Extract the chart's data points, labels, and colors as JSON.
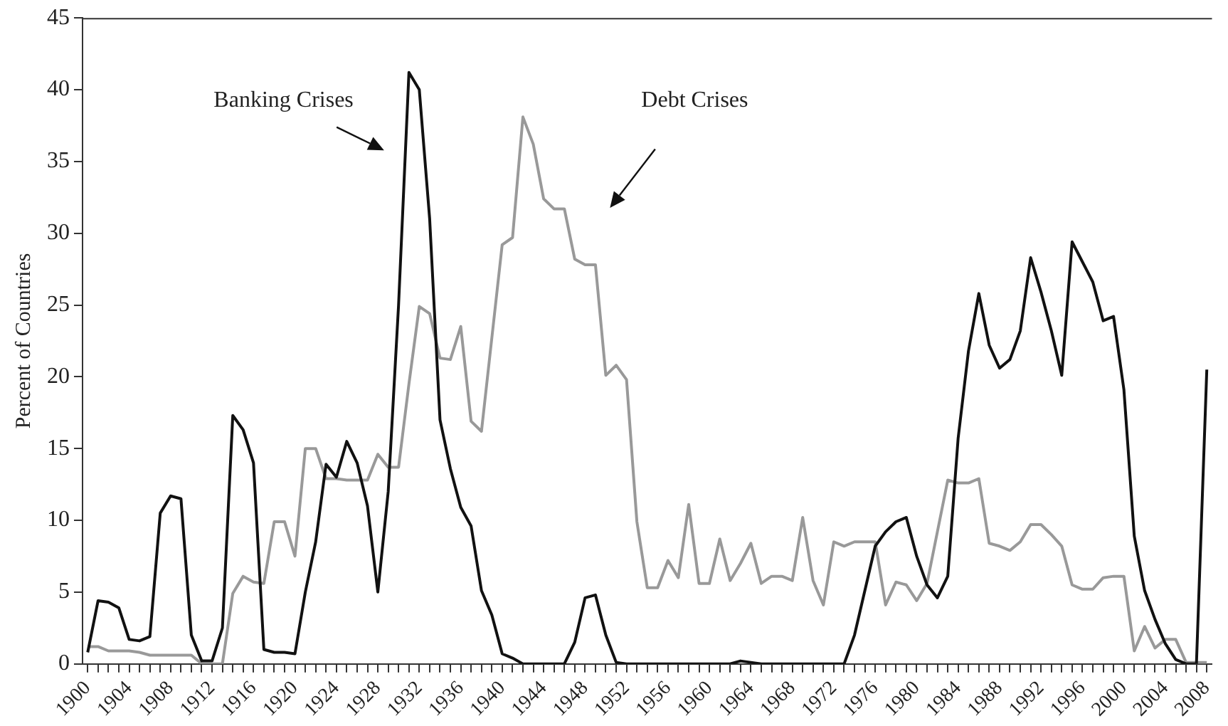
{
  "chart_data": {
    "type": "line",
    "ylabel": "Percent of Countries",
    "x": [
      1900,
      1901,
      1902,
      1903,
      1904,
      1905,
      1906,
      1907,
      1908,
      1909,
      1910,
      1911,
      1912,
      1913,
      1914,
      1915,
      1916,
      1917,
      1918,
      1919,
      1920,
      1921,
      1922,
      1923,
      1924,
      1925,
      1926,
      1927,
      1928,
      1929,
      1930,
      1931,
      1932,
      1933,
      1934,
      1935,
      1936,
      1937,
      1938,
      1939,
      1940,
      1941,
      1942,
      1943,
      1944,
      1945,
      1946,
      1947,
      1948,
      1949,
      1950,
      1951,
      1952,
      1953,
      1954,
      1955,
      1956,
      1957,
      1958,
      1959,
      1960,
      1961,
      1962,
      1963,
      1964,
      1965,
      1966,
      1967,
      1968,
      1969,
      1970,
      1971,
      1972,
      1973,
      1974,
      1975,
      1976,
      1977,
      1978,
      1979,
      1980,
      1981,
      1982,
      1983,
      1984,
      1985,
      1986,
      1987,
      1988,
      1989,
      1990,
      1991,
      1992,
      1993,
      1994,
      1995,
      1996,
      1997,
      1998,
      1999,
      2000,
      2001,
      2002,
      2003,
      2004,
      2005,
      2006,
      2007,
      2008
    ],
    "series": [
      {
        "color": "#111111",
        "values": [
          0.8,
          4.4,
          4.3,
          3.9,
          1.7,
          1.6,
          1.9,
          10.5,
          11.7,
          11.5,
          2.0,
          0.2,
          0.2,
          2.5,
          17.3,
          16.3,
          14.0,
          1.0,
          0.8,
          0.8,
          0.7,
          5.0,
          8.5,
          13.9,
          13.0,
          15.5,
          14.0,
          11.0,
          5.0,
          12.0,
          25.0,
          41.2,
          40.0,
          31.0,
          17.0,
          13.6,
          10.9,
          9.6,
          5.1,
          3.4,
          0.7,
          0.4,
          0,
          0,
          0,
          0,
          0,
          1.5,
          4.6,
          4.8,
          2.0,
          0.1,
          0,
          0,
          0,
          0,
          0,
          0,
          0,
          0,
          0,
          0,
          0,
          0.2,
          0.1,
          0,
          0,
          0,
          0,
          0,
          0,
          0,
          0,
          0,
          2.0,
          5.1,
          8.2,
          9.2,
          9.9,
          10.2,
          7.5,
          5.5,
          4.6,
          6.1,
          15.7,
          21.8,
          25.8,
          22.2,
          20.6,
          21.2,
          23.2,
          28.3,
          25.9,
          23.2,
          20.1,
          29.4,
          28.0,
          26.6,
          23.9,
          24.2,
          19.1,
          8.9,
          5.1,
          3.1,
          1.4,
          0.3,
          0,
          0,
          20.5
        ]
      },
      {
        "color": "#999999",
        "values": [
          1.2,
          1.2,
          0.9,
          0.9,
          0.9,
          0.8,
          0.6,
          0.6,
          0.6,
          0.6,
          0.6,
          0,
          0,
          0,
          4.9,
          6.1,
          5.7,
          5.6,
          9.9,
          9.9,
          7.5,
          15.0,
          15.0,
          12.9,
          12.9,
          12.8,
          12.8,
          12.8,
          14.6,
          13.7,
          13.7,
          19.5,
          24.9,
          24.4,
          21.3,
          21.2,
          23.5,
          16.9,
          16.2,
          22.7,
          29.2,
          29.7,
          38.1,
          36.2,
          32.4,
          31.7,
          31.7,
          28.2,
          27.8,
          27.8,
          20.1,
          20.8,
          19.8,
          9.9,
          5.3,
          5.3,
          7.2,
          6.0,
          11.1,
          5.6,
          5.6,
          8.7,
          5.8,
          7.0,
          8.4,
          5.6,
          6.1,
          6.1,
          5.8,
          10.2,
          5.8,
          4.1,
          8.5,
          8.2,
          8.5,
          8.5,
          8.5,
          4.1,
          5.7,
          5.5,
          4.4,
          5.6,
          9.2,
          12.8,
          12.6,
          12.6,
          12.9,
          8.4,
          8.2,
          7.9,
          8.5,
          9.7,
          9.7,
          9.0,
          8.2,
          5.5,
          5.2,
          5.2,
          6.0,
          6.1,
          6.1,
          0.9,
          2.6,
          1.1,
          1.7,
          1.7,
          0.1,
          0.1,
          0.1
        ]
      }
    ],
    "xlim": [
      1899.5,
      2008.5
    ],
    "xticks": [
      1900,
      {
        "value": 1901,
        "label": null
      },
      {
        "value": 1902,
        "label": null
      },
      {
        "value": 1903,
        "label": null
      },
      1904,
      {
        "value": 1905,
        "label": null
      },
      {
        "value": 1906,
        "label": null
      },
      {
        "value": 1907,
        "label": null
      },
      1908,
      {
        "value": 1909,
        "label": null
      },
      {
        "value": 1910,
        "label": null
      },
      {
        "value": 1911,
        "label": null
      },
      1912,
      {
        "value": 1913,
        "label": null
      },
      {
        "value": 1914,
        "label": null
      },
      {
        "value": 1915,
        "label": null
      },
      1916,
      {
        "value": 1917,
        "label": null
      },
      {
        "value": 1918,
        "label": null
      },
      {
        "value": 1919,
        "label": null
      },
      1920,
      {
        "value": 1921,
        "label": null
      },
      {
        "value": 1922,
        "label": null
      },
      {
        "value": 1923,
        "label": null
      },
      1924,
      {
        "value": 1925,
        "label": null
      },
      {
        "value": 1926,
        "label": null
      },
      {
        "value": 1927,
        "label": null
      },
      1928,
      {
        "value": 1929,
        "label": null
      },
      {
        "value": 1930,
        "label": null
      },
      {
        "value": 1931,
        "label": null
      },
      1932,
      {
        "value": 1933,
        "label": null
      },
      {
        "value": 1934,
        "label": null
      },
      {
        "value": 1935,
        "label": null
      },
      1936,
      {
        "value": 1937,
        "label": null
      },
      {
        "value": 1938,
        "label": null
      },
      {
        "value": 1939,
        "label": null
      },
      1940,
      {
        "value": 1941,
        "label": null
      },
      {
        "value": 1942,
        "label": null
      },
      {
        "value": 1943,
        "label": null
      },
      1944,
      {
        "value": 1945,
        "label": null
      },
      {
        "value": 1946,
        "label": null
      },
      {
        "value": 1947,
        "label": null
      },
      1948,
      {
        "value": 1949,
        "label": null
      },
      {
        "value": 1950,
        "label": null
      },
      {
        "value": 1951,
        "label": null
      },
      1952,
      {
        "value": 1953,
        "label": null
      },
      {
        "value": 1954,
        "label": null
      },
      {
        "value": 1955,
        "label": null
      },
      1956,
      {
        "value": 1957,
        "label": null
      },
      {
        "value": 1958,
        "label": null
      },
      {
        "value": 1959,
        "label": null
      },
      1960,
      {
        "value": 1961,
        "label": null
      },
      {
        "value": 1962,
        "label": null
      },
      {
        "value": 1963,
        "label": null
      },
      1964,
      {
        "value": 1965,
        "label": null
      },
      {
        "value": 1966,
        "label": null
      },
      {
        "value": 1967,
        "label": null
      },
      1968,
      {
        "value": 1969,
        "label": null
      },
      {
        "value": 1970,
        "label": null
      },
      {
        "value": 1971,
        "label": null
      },
      1972,
      {
        "value": 1973,
        "label": null
      },
      {
        "value": 1974,
        "label": null
      },
      {
        "value": 1975,
        "label": null
      },
      1976,
      {
        "value": 1977,
        "label": null
      },
      {
        "value": 1978,
        "label": null
      },
      {
        "value": 1979,
        "label": null
      },
      1980,
      {
        "value": 1981,
        "label": null
      },
      {
        "value": 1982,
        "label": null
      },
      {
        "value": 1983,
        "label": null
      },
      1984,
      {
        "value": 1985,
        "label": null
      },
      {
        "value": 1986,
        "label": null
      },
      {
        "value": 1987,
        "label": null
      },
      1988,
      {
        "value": 1989,
        "label": null
      },
      {
        "value": 1990,
        "label": null
      },
      {
        "value": 1991,
        "label": null
      },
      1992,
      {
        "value": 1993,
        "label": null
      },
      {
        "value": 1994,
        "label": null
      },
      {
        "value": 1995,
        "label": null
      },
      1996,
      {
        "value": 1997,
        "label": null
      },
      {
        "value": 1998,
        "label": null
      },
      {
        "value": 1999,
        "label": null
      },
      2000,
      {
        "value": 2001,
        "label": null
      },
      {
        "value": 2002,
        "label": null
      },
      {
        "value": 2003,
        "label": null
      },
      2004,
      {
        "value": 2005,
        "label": null
      },
      {
        "value": 2006,
        "label": null
      },
      {
        "value": 2007,
        "label": null
      },
      2008
    ],
    "ylim": [
      0,
      45
    ],
    "yticks": [
      0,
      5,
      10,
      15,
      20,
      25,
      30,
      35,
      40,
      45
    ],
    "grid": false,
    "legend": false,
    "marker": "none",
    "line_style": "solid",
    "annotations": [
      "Banking Crises",
      "Debt Crises"
    ]
  }
}
